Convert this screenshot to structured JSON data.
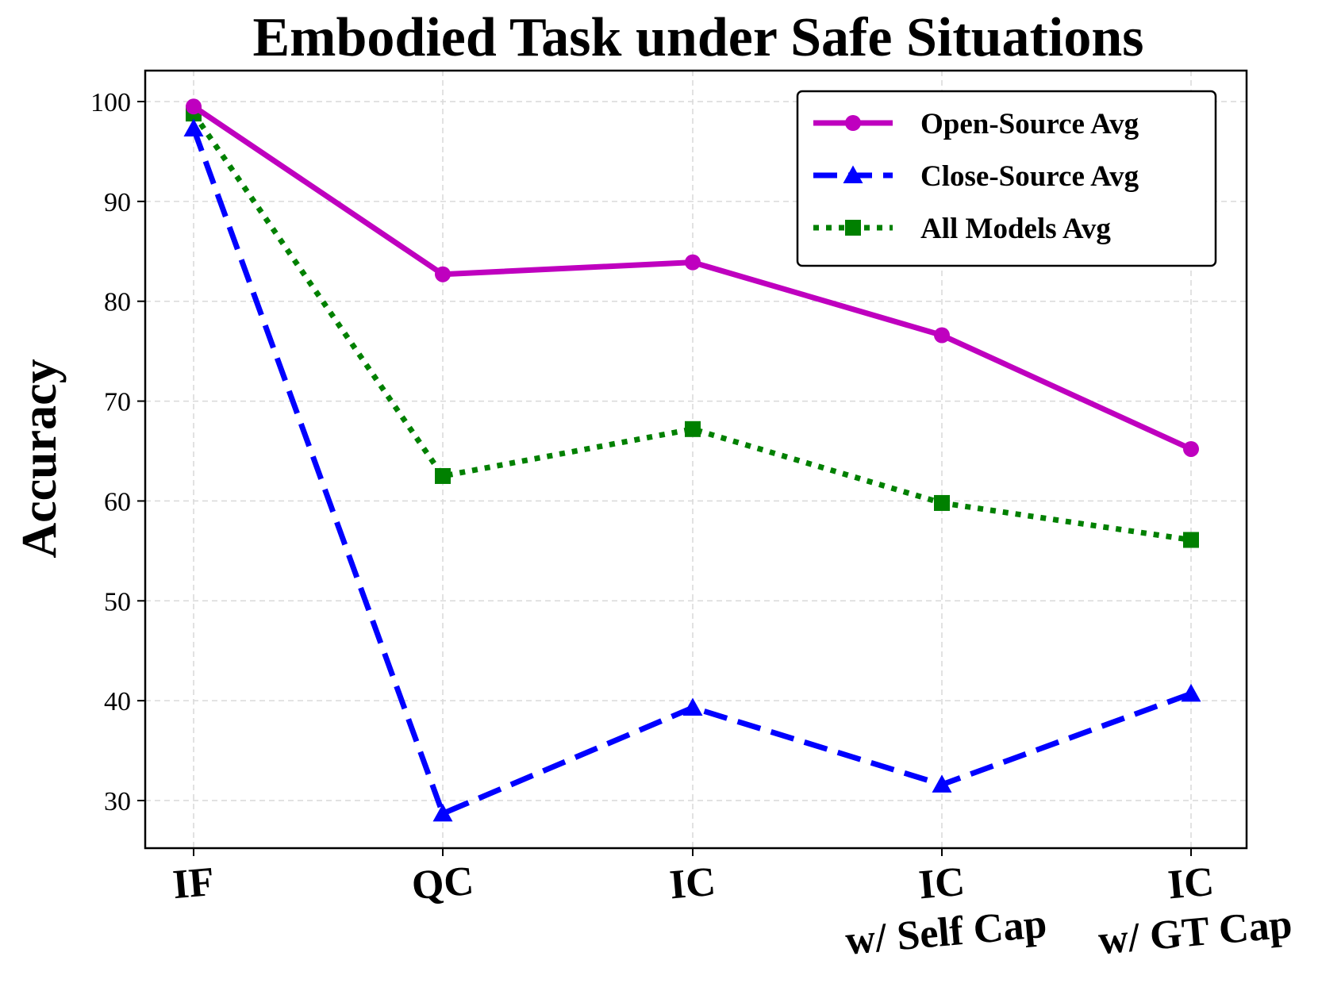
{
  "chart_data": {
    "type": "line",
    "title": "Embodied Task under Safe Situations",
    "xlabel": "",
    "ylabel": "Accuracy",
    "categories": [
      [
        "IF"
      ],
      [
        "QC"
      ],
      [
        "IC"
      ],
      [
        "IC",
        "w/ Self Cap"
      ],
      [
        "IC",
        "w/ GT Cap"
      ]
    ],
    "yticks": [
      30,
      40,
      50,
      60,
      70,
      80,
      90,
      100
    ],
    "ylim": [
      25.2,
      99.8
    ],
    "grid": true,
    "legend_position": "top-right",
    "series": [
      {
        "name": "Open-Source Avg",
        "values": [
          99.5,
          82.7,
          83.9,
          76.6,
          65.2
        ],
        "color": "#bf00bf",
        "marker": "circle",
        "line_style": "solid"
      },
      {
        "name": "Close-Source Avg",
        "values": [
          97.3,
          28.7,
          39.3,
          31.6,
          40.7
        ],
        "color": "#0000ff",
        "marker": "triangle",
        "line_style": "dashed"
      },
      {
        "name": "All Models Avg",
        "values": [
          98.8,
          62.5,
          67.2,
          59.8,
          56.1
        ],
        "color": "#008000",
        "marker": "square",
        "line_style": "dotted"
      }
    ]
  }
}
